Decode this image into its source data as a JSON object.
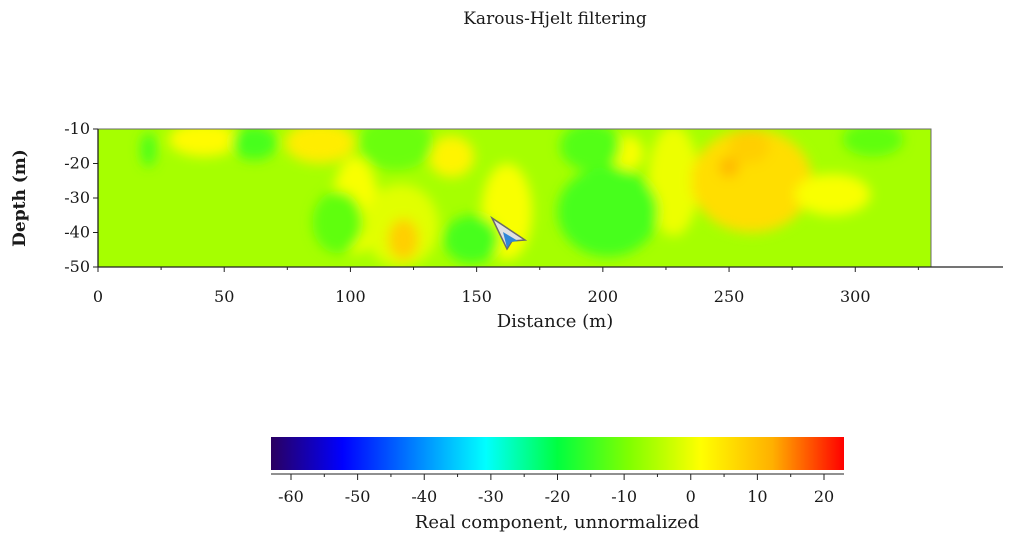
{
  "chart_data": {
    "type": "heatmap",
    "title": "Karous-Hjelt filtering",
    "xlabel": "Distance (m)",
    "ylabel": "Depth (m)",
    "xlim": [
      0,
      330
    ],
    "ylim": [
      -50,
      -10
    ],
    "x_ticks": [
      0,
      50,
      100,
      150,
      200,
      250,
      300
    ],
    "y_ticks": [
      -10,
      -20,
      -30,
      -40,
      -50
    ],
    "colorbar": {
      "label": "Real component, unnormalized",
      "range": [
        -63,
        23
      ],
      "ticks": [
        -60,
        -50,
        -40,
        -30,
        -20,
        -10,
        0,
        10,
        20
      ],
      "colors": [
        "#2a0060",
        "#0000ff",
        "#0080ff",
        "#00ffff",
        "#00ff40",
        "#80ff00",
        "#ffff00",
        "#ffb000",
        "#ff0000"
      ]
    },
    "background_value": -6,
    "anomalies": [
      {
        "x": 42,
        "y": -13,
        "rx": 14,
        "ry": 5,
        "value": 2
      },
      {
        "x": 88,
        "y": -14,
        "rx": 14,
        "ry": 6,
        "value": 4
      },
      {
        "x": 102,
        "y": -32,
        "rx": 9,
        "ry": 14,
        "value": 1
      },
      {
        "x": 120,
        "y": -38,
        "rx": 15,
        "ry": 12,
        "value": -1
      },
      {
        "x": 121,
        "y": -42,
        "rx": 6,
        "ry": 6,
        "value": 8
      },
      {
        "x": 140,
        "y": -18,
        "rx": 9,
        "ry": 6,
        "value": 3
      },
      {
        "x": 162,
        "y": -34,
        "rx": 10,
        "ry": 14,
        "value": 1
      },
      {
        "x": 228,
        "y": -25,
        "rx": 10,
        "ry": 16,
        "value": 0
      },
      {
        "x": 210,
        "y": -17,
        "rx": 6,
        "ry": 5,
        "value": 1
      },
      {
        "x": 259,
        "y": -25,
        "rx": 24,
        "ry": 15,
        "value": 6
      },
      {
        "x": 258,
        "y": -15,
        "rx": 8,
        "ry": 5,
        "value": 8
      },
      {
        "x": 250,
        "y": -21,
        "rx": 4,
        "ry": 3,
        "value": 11
      },
      {
        "x": 291,
        "y": -29,
        "rx": 15,
        "ry": 6,
        "value": 1
      },
      {
        "x": 62,
        "y": -14,
        "rx": 9,
        "ry": 5,
        "value": -14
      },
      {
        "x": 95,
        "y": -37,
        "rx": 10,
        "ry": 9,
        "value": -12
      },
      {
        "x": 118,
        "y": -14,
        "rx": 15,
        "ry": 8,
        "value": -11
      },
      {
        "x": 148,
        "y": -42,
        "rx": 11,
        "ry": 7,
        "value": -14
      },
      {
        "x": 195,
        "y": -15,
        "rx": 12,
        "ry": 7,
        "value": -13
      },
      {
        "x": 202,
        "y": -34,
        "rx": 20,
        "ry": 13,
        "value": -14
      },
      {
        "x": 307,
        "y": -13,
        "rx": 12,
        "ry": 5,
        "value": -12
      },
      {
        "x": 20,
        "y": -16,
        "rx": 3,
        "ry": 5,
        "value": -14
      }
    ]
  }
}
